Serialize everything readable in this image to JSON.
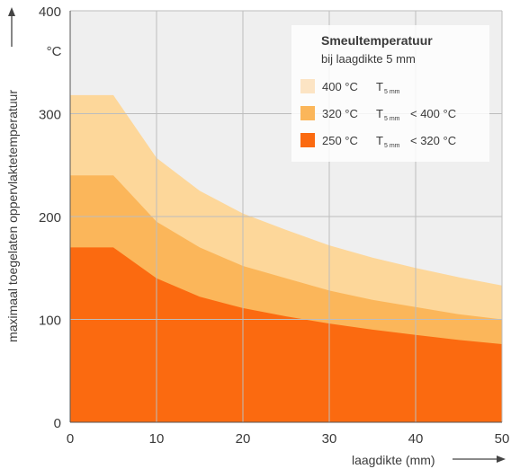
{
  "chart_data": {
    "type": "area",
    "title": "",
    "xlabel": "laagdikte (mm)",
    "ylabel": "maximaal toegelaten oppervlaktetemperatuur",
    "yunit": "°C",
    "xlim": [
      0,
      50
    ],
    "ylim": [
      0,
      400
    ],
    "x_ticks": [
      0,
      10,
      20,
      30,
      40,
      50
    ],
    "y_ticks": [
      0,
      100,
      200,
      300,
      400
    ],
    "grid": true,
    "legend_position": "top-right",
    "legend": {
      "title": "Smeultemperatuur",
      "subtitle": "bij laagdikte 5 mm",
      "entries": [
        {
          "label": "400 °C",
          "t_symbol": "T",
          "t_sub": "5 mm",
          "condition": "",
          "color": "#fce4c4"
        },
        {
          "label": "320 °C",
          "t_symbol": "T",
          "t_sub": "5 mm",
          "condition": "< 400 °C",
          "color": "#fbb65a"
        },
        {
          "label": "250 °C",
          "t_symbol": "T",
          "t_sub": "5 mm",
          "condition": "< 320 °C",
          "color": "#fb6a10"
        }
      ]
    },
    "series": [
      {
        "name": "400 °C",
        "color": "#fdd79a",
        "x": [
          0,
          5,
          10,
          15,
          20,
          25,
          30,
          35,
          40,
          45,
          50
        ],
        "y": [
          318,
          318,
          257,
          225,
          203,
          187,
          172,
          160,
          150,
          141,
          133
        ]
      },
      {
        "name": "320 °C",
        "color": "#fbb65a",
        "x": [
          0,
          5,
          10,
          15,
          20,
          25,
          30,
          35,
          40,
          45,
          50
        ],
        "y": [
          240,
          240,
          195,
          170,
          152,
          140,
          128,
          119,
          112,
          105,
          100
        ]
      },
      {
        "name": "250 °C",
        "color": "#fb6a10",
        "x": [
          0,
          5,
          10,
          15,
          20,
          25,
          30,
          35,
          40,
          45,
          50
        ],
        "y": [
          170,
          170,
          140,
          122,
          111,
          103,
          96,
          90,
          85,
          80,
          76
        ]
      }
    ]
  }
}
